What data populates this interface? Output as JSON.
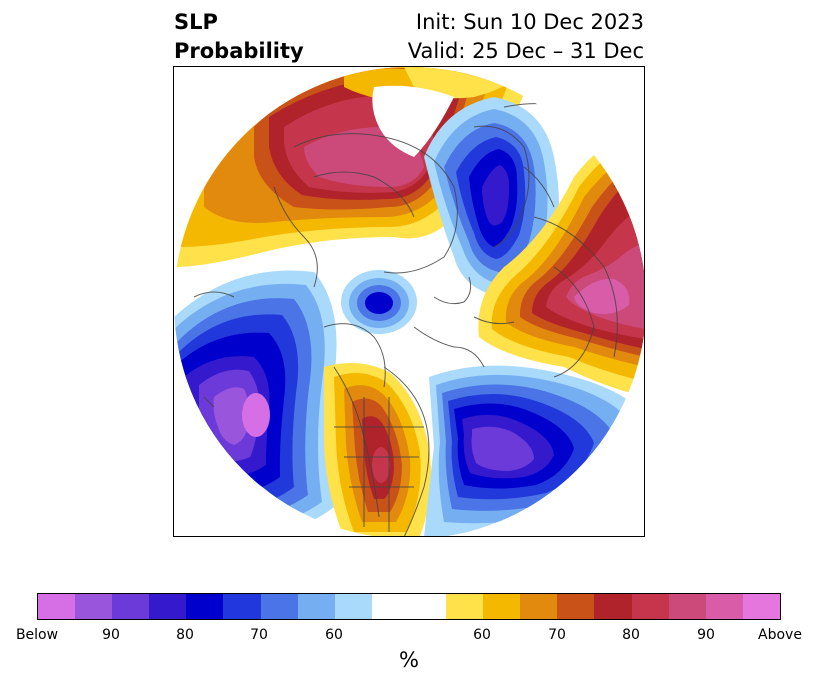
{
  "title": {
    "left_line1": "SLP",
    "left_line2": "Probability",
    "right_line1": "Init: Sun 10 Dec 2023",
    "right_line2": "Valid: 25 Dec – 31 Dec"
  },
  "colorbar": {
    "unit": "%",
    "colors": [
      "#d66ee6",
      "#9a55dd",
      "#6b3ad8",
      "#3519cd",
      "#0000cc",
      "#2139da",
      "#4b74e6",
      "#76aff1",
      "#a9d9fb",
      "#ffffff",
      "#ffe14a",
      "#f5b800",
      "#e28a0e",
      "#c85218",
      "#b1232a",
      "#c5364c",
      "#cc4a7a",
      "#d95ca8",
      "#e476dd"
    ],
    "tick_labels": [
      "Below",
      "90",
      "80",
      "70",
      "60",
      "60",
      "70",
      "80",
      "90",
      "Above"
    ]
  },
  "legend_colors": {
    "below_strong": "#6b3ad8",
    "below_mid": "#0000cc",
    "below_weak": "#76aff1",
    "above_weak": "#ffe14a",
    "above_mid": "#e28a0e",
    "above_strong": "#b1232a",
    "above_very": "#cc4a7a",
    "above_max": "#e476dd",
    "below_max": "#d66ee6"
  }
}
